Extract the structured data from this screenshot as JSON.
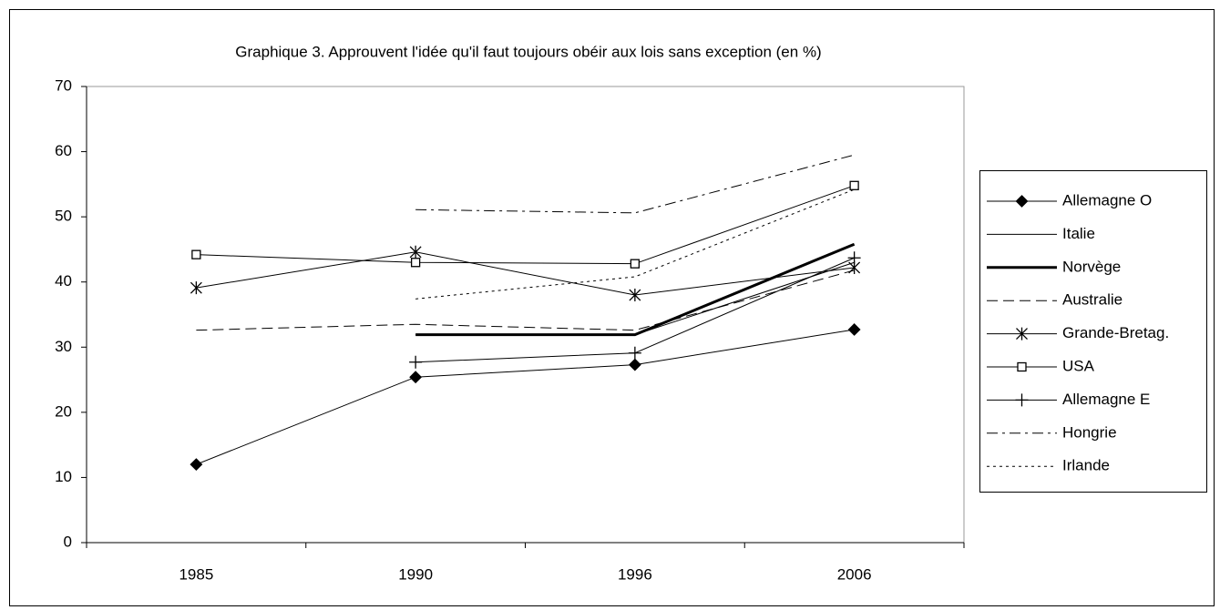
{
  "chart_data": {
    "type": "line",
    "title": "Graphique 3. Approuvent l'idée qu'il faut toujours obéir aux lois sans exception (en %)",
    "categories": [
      "1985",
      "1990",
      "1996",
      "2006"
    ],
    "ylim": [
      0,
      70
    ],
    "yticks": [
      0,
      10,
      20,
      30,
      40,
      50,
      60,
      70
    ],
    "legend": "right",
    "series": [
      {
        "name": "Allemagne O",
        "color": "#000000",
        "line_style": "solid",
        "width": 1,
        "marker": "diamond",
        "values": [
          12,
          25.4,
          27.3,
          32.7
        ]
      },
      {
        "name": "Italie",
        "color": "#000000",
        "line_style": "solid",
        "width": 1,
        "marker": "none",
        "values": [
          null,
          31.9,
          31.9,
          43
        ]
      },
      {
        "name": "Norvège",
        "color": "#000000",
        "line_style": "solid",
        "width": 3,
        "marker": "none",
        "values": [
          null,
          31.9,
          31.9,
          45.8
        ]
      },
      {
        "name": "Australie",
        "color": "#000000",
        "line_style": "dashed",
        "width": 1,
        "marker": "none",
        "values": [
          32.6,
          33.5,
          32.6,
          41.8
        ]
      },
      {
        "name": "Grande-Bretag.",
        "color": "#000000",
        "line_style": "solid",
        "width": 1,
        "marker": "asterisk",
        "values": [
          39.1,
          44.6,
          38,
          42.2
        ]
      },
      {
        "name": "USA",
        "color": "#000000",
        "line_style": "solid",
        "width": 1,
        "marker": "square",
        "values": [
          44.2,
          43,
          42.8,
          54.8
        ]
      },
      {
        "name": "Allemagne E",
        "color": "#000000",
        "line_style": "solid",
        "width": 1,
        "marker": "plus",
        "values": [
          null,
          27.7,
          29.1,
          43.7
        ]
      },
      {
        "name": "Hongrie",
        "color": "#000000",
        "line_style": "dashdot",
        "width": 1,
        "marker": "none",
        "values": [
          null,
          51.1,
          50.6,
          59.5
        ]
      },
      {
        "name": "Irlande",
        "color": "#000000",
        "line_style": "dotted",
        "width": 1,
        "marker": "none",
        "values": [
          null,
          37.4,
          40.8,
          54.2
        ]
      }
    ]
  }
}
